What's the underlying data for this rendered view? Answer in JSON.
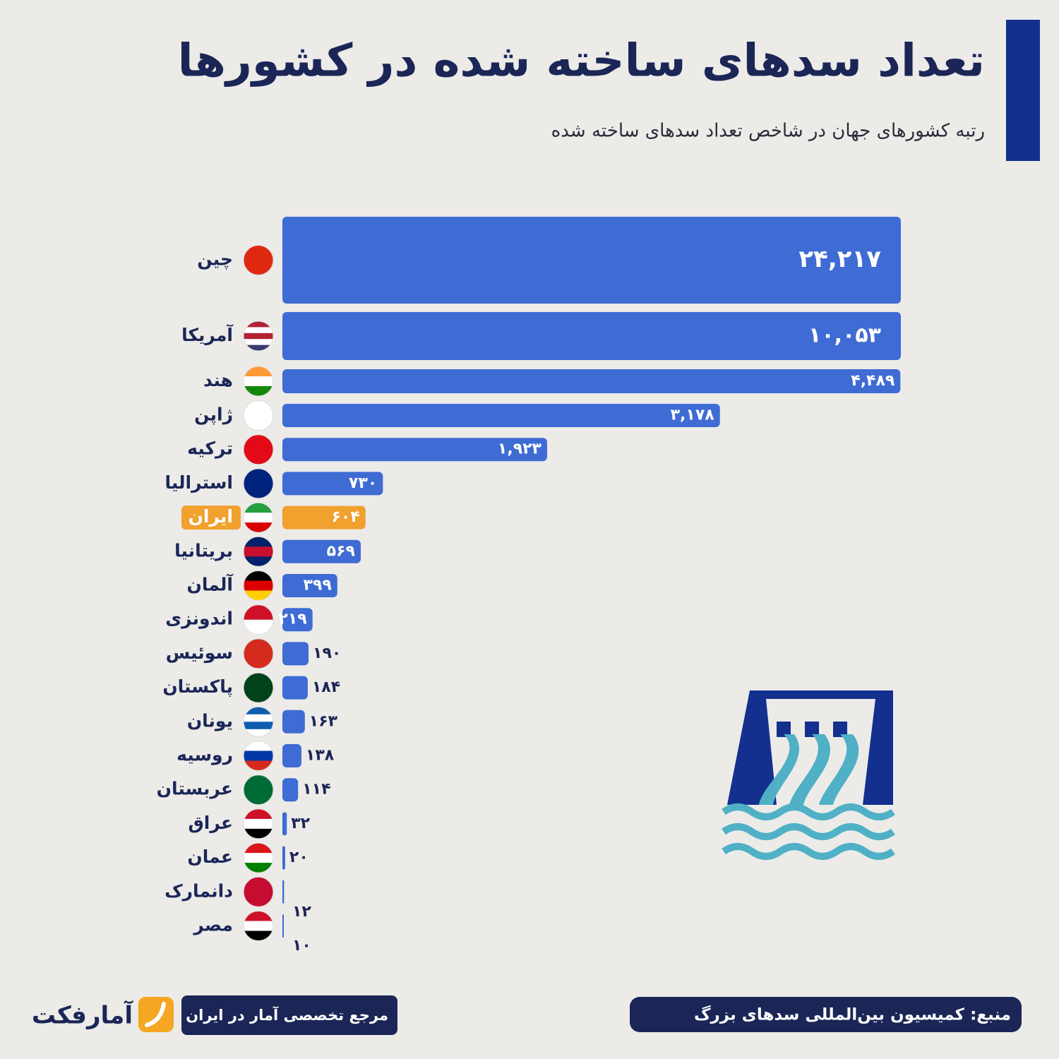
{
  "chart_data": {
    "type": "bar",
    "orientation": "horizontal",
    "title": "تعداد سدهای ساخته شده در کشورها",
    "subtitle": "رتبه کشورهای جهان در شاخص تعداد سدهای ساخته شده",
    "categories": [
      "چین",
      "آمریکا",
      "هند",
      "ژاپن",
      "ترکیه",
      "استرالیا",
      "ایران",
      "بریتانیا",
      "آلمان",
      "اندونزی",
      "سوئیس",
      "پاکستان",
      "یونان",
      "روسیه",
      "عربستان",
      "عراق",
      "عمان",
      "دانمارک",
      "مصر"
    ],
    "values": [
      24217,
      10053,
      4489,
      3178,
      1923,
      730,
      604,
      569,
      399,
      219,
      190,
      184,
      163,
      138,
      114,
      32,
      20,
      12,
      10
    ],
    "value_labels": [
      "۲۴,۲۱۷",
      "۱۰,۰۵۳",
      "۴,۴۸۹",
      "۳,۱۷۸",
      "۱,۹۲۳",
      "۷۳۰",
      "۶۰۴",
      "۵۶۹",
      "۳۹۹",
      "۲۱۹",
      "۱۹۰",
      "۱۸۴",
      "۱۶۳",
      "۱۳۸",
      "۱۱۴",
      "۳۲",
      "۲۰",
      "۱۲",
      "۱۰"
    ],
    "colors": [
      "#3e6bd4",
      "#3e6bd4",
      "#3e6bd4",
      "#3e6bd4",
      "#3e6bd4",
      "#3e6bd4",
      "#f0a12e",
      "#3e6bd4",
      "#3e6bd4",
      "#3e6bd4",
      "#3e6bd4",
      "#3e6bd4",
      "#3e6bd4",
      "#3e6bd4",
      "#3e6bd4",
      "#3e6bd4",
      "#3e6bd4",
      "#3e6bd4",
      "#3e6bd4"
    ],
    "highlight_category": "ایران"
  },
  "footer": {
    "source": "منبع: کمیسیون بین‌المللی سدهای بزرگ",
    "tagline": "مرجع تخصصی آمار در ایران",
    "brand": "آمارفکت"
  }
}
